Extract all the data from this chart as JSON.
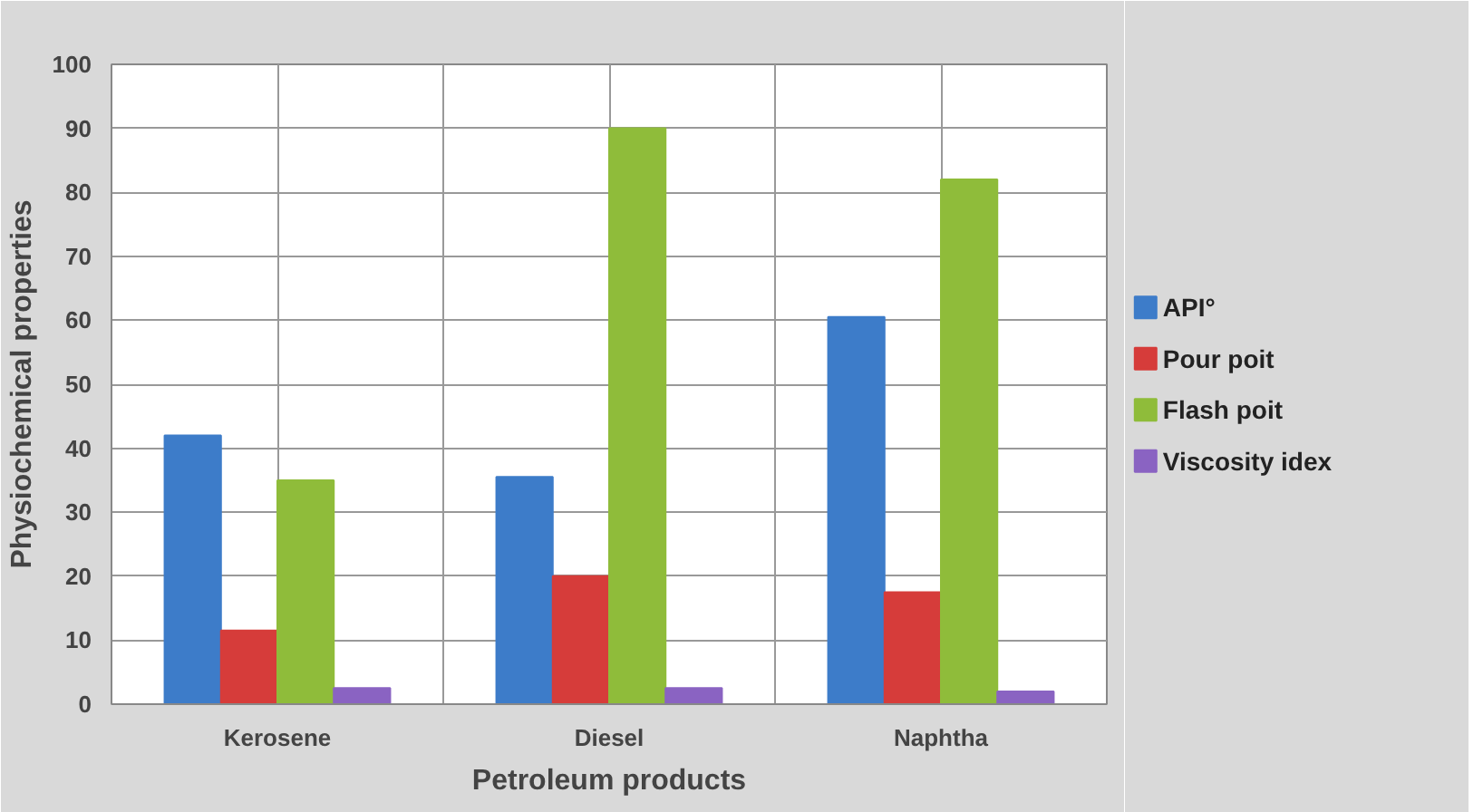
{
  "chart_data": {
    "type": "bar",
    "xlabel": "Petroleum products",
    "ylabel": "Physiochemical properties",
    "categories": [
      "Kerosene",
      "Diesel",
      "Naphtha"
    ],
    "series": [
      {
        "name": "API°",
        "color": "#3d7cc9",
        "values": [
          42,
          35.5,
          60.5
        ]
      },
      {
        "name": "Pour poit",
        "color": "#d63c3a",
        "values": [
          11.5,
          20,
          17.5
        ]
      },
      {
        "name": "Flash poit",
        "color": "#8fbc3a",
        "values": [
          35,
          90,
          82
        ]
      },
      {
        "name": "Viscosity idex",
        "color": "#8a63c2",
        "values": [
          2.5,
          2.5,
          2
        ]
      }
    ],
    "ylim": [
      0,
      100
    ],
    "yticks": [
      0,
      10,
      20,
      30,
      40,
      50,
      60,
      70,
      80,
      90,
      100
    ],
    "grid": true,
    "legend": "right"
  }
}
